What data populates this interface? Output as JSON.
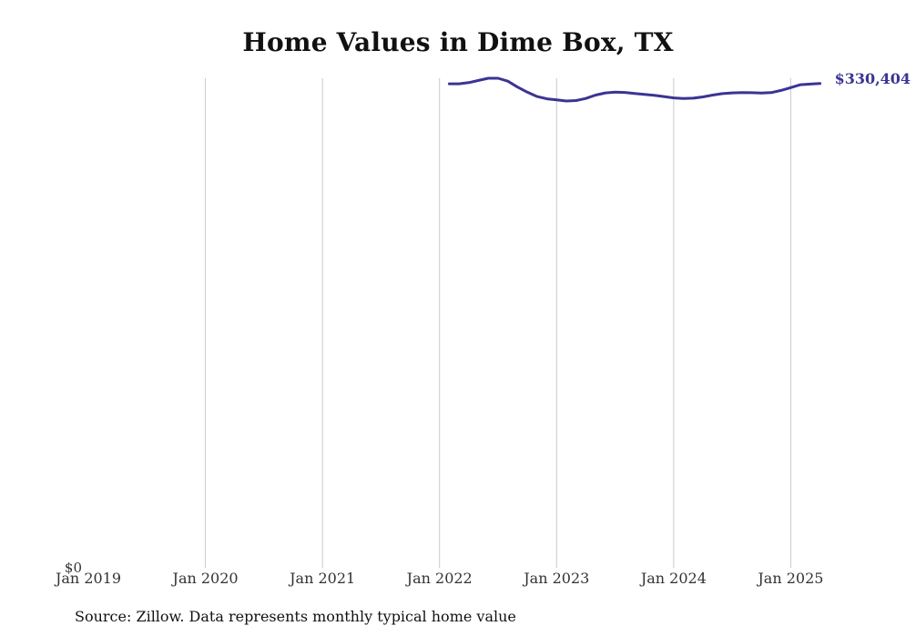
{
  "title": "Home Values in Dime Box, TX",
  "source_note": "Source: Zillow. Data represents monthly typical home value",
  "colors": {
    "line": "#3b3494",
    "gridline": "#c8c8c8",
    "text": "#333333"
  },
  "chart_data": {
    "type": "line",
    "title": "Home Values in Dime Box, TX",
    "xlabel": "",
    "ylabel": "",
    "x_ticks": [
      "Jan 2019",
      "Jan 2020",
      "Jan 2021",
      "Jan 2022",
      "Jan 2023",
      "Jan 2024",
      "Jan 2025"
    ],
    "y_ticks": [
      "$0"
    ],
    "xlim": [
      "2019-01",
      "2025-06"
    ],
    "ylim": [
      0,
      334000
    ],
    "grid": "vertical",
    "end_label": "$330,404",
    "series": [
      {
        "x": [
          "2022-02",
          "2022-03",
          "2022-04",
          "2022-05",
          "2022-06",
          "2022-07",
          "2022-08",
          "2022-09",
          "2022-10",
          "2022-11",
          "2022-12",
          "2023-01",
          "2023-02",
          "2023-03",
          "2023-04",
          "2023-05",
          "2023-06",
          "2023-07",
          "2023-08",
          "2023-09",
          "2023-10",
          "2023-11",
          "2023-12",
          "2024-01",
          "2024-02",
          "2024-03",
          "2024-04",
          "2024-05",
          "2024-06",
          "2024-07",
          "2024-08",
          "2024-09",
          "2024-10",
          "2024-11",
          "2024-12",
          "2025-01",
          "2025-02",
          "2025-03",
          "2025-04"
        ],
        "y": [
          330200,
          330200,
          331000,
          332500,
          334000,
          334000,
          332000,
          328000,
          324500,
          321500,
          320000,
          319200,
          318500,
          318800,
          320200,
          322500,
          324000,
          324500,
          324300,
          323600,
          323000,
          322300,
          321500,
          320600,
          320200,
          320400,
          321300,
          322500,
          323500,
          324000,
          324200,
          324100,
          323900,
          324200,
          325700,
          327600,
          329600,
          330000,
          330404
        ]
      }
    ]
  }
}
